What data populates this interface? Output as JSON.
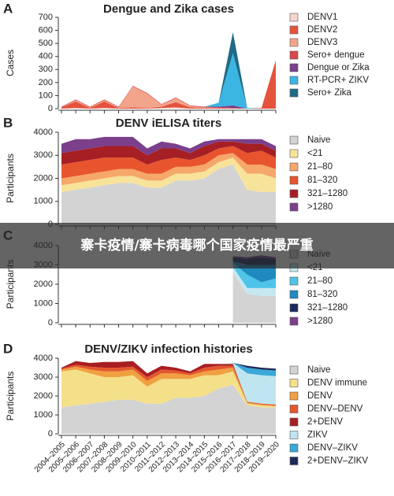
{
  "chart_data": [
    {
      "type": "area",
      "stacked": true,
      "panel_label": "A",
      "title": "Dengue and Zika cases",
      "ylabel": "Cases",
      "categories": [
        null,
        null,
        null,
        null,
        null,
        null,
        null,
        null,
        null,
        null,
        null,
        null,
        null,
        null,
        null,
        null
      ],
      "ylim": [
        0,
        700
      ],
      "yticks": [
        0,
        100,
        200,
        300,
        400,
        500,
        600,
        700
      ],
      "series": [
        {
          "name": "DENV1",
          "color": "#f6d5cc",
          "values": [
            0,
            5,
            0,
            5,
            0,
            0,
            0,
            5,
            10,
            0,
            0,
            0,
            0,
            0,
            0,
            0
          ]
        },
        {
          "name": "DENV2",
          "color": "#e5533d",
          "values": [
            10,
            50,
            5,
            50,
            5,
            10,
            5,
            10,
            40,
            10,
            5,
            5,
            0,
            0,
            5,
            370
          ]
        },
        {
          "name": "DENV3",
          "color": "#f2a58a",
          "values": [
            0,
            10,
            5,
            10,
            5,
            160,
            110,
            15,
            30,
            10,
            5,
            0,
            0,
            0,
            0,
            0
          ]
        },
        {
          "name": "Sero+ dengue",
          "color": "#d9474a",
          "values": [
            5,
            5,
            5,
            5,
            5,
            5,
            5,
            5,
            5,
            5,
            5,
            5,
            5,
            0,
            0,
            0
          ]
        },
        {
          "name": "Dengue or Zika",
          "color": "#7b3f8c",
          "values": [
            0,
            0,
            0,
            0,
            0,
            0,
            0,
            0,
            0,
            0,
            0,
            5,
            20,
            0,
            0,
            0
          ]
        },
        {
          "name": "RT-PCR+ ZIKV",
          "color": "#3bb6e3",
          "values": [
            0,
            0,
            0,
            0,
            0,
            0,
            0,
            0,
            0,
            0,
            0,
            30,
            400,
            5,
            0,
            0
          ]
        },
        {
          "name": "Sero+ Zika",
          "color": "#1f6a86",
          "values": [
            0,
            0,
            0,
            0,
            0,
            0,
            0,
            0,
            0,
            0,
            0,
            0,
            160,
            0,
            0,
            0
          ]
        }
      ]
    },
    {
      "type": "area",
      "stacked": true,
      "panel_label": "B",
      "title": "DENV iELISA titers",
      "ylabel": "Participants",
      "categories": [
        null,
        null,
        null,
        null,
        null,
        null,
        null,
        null,
        null,
        null,
        null,
        null,
        null,
        null,
        null,
        null
      ],
      "ylim": [
        0,
        4000
      ],
      "yticks": [
        0,
        1000,
        2000,
        3000,
        4000
      ],
      "series": [
        {
          "name": "Naive",
          "color": "#d3d3d3",
          "values": [
            1400,
            1500,
            1600,
            1700,
            1800,
            1800,
            1600,
            1600,
            1900,
            1900,
            2000,
            2400,
            2600,
            1500,
            1400,
            1400
          ]
        },
        {
          "name": "<21",
          "color": "#f7e39a",
          "values": [
            300,
            300,
            300,
            300,
            300,
            300,
            300,
            300,
            300,
            300,
            300,
            300,
            300,
            700,
            800,
            600
          ]
        },
        {
          "name": "21–80",
          "color": "#f6a76a",
          "values": [
            300,
            300,
            300,
            300,
            300,
            300,
            300,
            300,
            300,
            300,
            300,
            300,
            200,
            400,
            400,
            400
          ]
        },
        {
          "name": "81–320",
          "color": "#e8542e",
          "values": [
            600,
            600,
            600,
            600,
            500,
            500,
            400,
            600,
            400,
            300,
            400,
            300,
            300,
            500,
            600,
            500
          ]
        },
        {
          "name": "321–1280",
          "color": "#a51f24",
          "values": [
            500,
            500,
            500,
            500,
            500,
            500,
            400,
            500,
            400,
            300,
            400,
            300,
            200,
            400,
            300,
            300
          ]
        },
        {
          "name": ">1280",
          "color": "#7b3f8c",
          "values": [
            400,
            500,
            400,
            400,
            400,
            400,
            300,
            300,
            200,
            200,
            200,
            100,
            100,
            200,
            200,
            200
          ]
        }
      ]
    },
    {
      "type": "area",
      "stacked": true,
      "panel_label": "C",
      "ylabel": "Participants",
      "categories": [
        null,
        null,
        null,
        null,
        null,
        null,
        null,
        null,
        null,
        null,
        null,
        null,
        null,
        null,
        null,
        null
      ],
      "ylim": [
        0,
        4000
      ],
      "yticks": [
        0,
        1000,
        2000,
        3000,
        4000
      ],
      "series": [
        {
          "name": "Naive",
          "color": "#d3d3d3",
          "values": [
            null,
            null,
            null,
            null,
            null,
            null,
            null,
            null,
            null,
            null,
            null,
            null,
            2600,
            1500,
            1400,
            1400
          ]
        },
        {
          "name": "<21",
          "color": "#c6e8f0",
          "values": [
            null,
            null,
            null,
            null,
            null,
            null,
            null,
            null,
            null,
            null,
            null,
            null,
            300,
            300,
            400,
            400
          ]
        },
        {
          "name": "21–80",
          "color": "#4fc3e8",
          "values": [
            null,
            null,
            null,
            null,
            null,
            null,
            null,
            null,
            null,
            null,
            null,
            null,
            200,
            700,
            300,
            500
          ]
        },
        {
          "name": "81–320",
          "color": "#1f8ac0",
          "values": [
            null,
            null,
            null,
            null,
            null,
            null,
            null,
            null,
            null,
            null,
            null,
            null,
            100,
            500,
            900,
            700
          ]
        },
        {
          "name": "321–1280",
          "color": "#1c2a5e",
          "values": [
            null,
            null,
            null,
            null,
            null,
            null,
            null,
            null,
            null,
            null,
            null,
            null,
            200,
            300,
            400,
            300
          ]
        },
        {
          "name": ">1280",
          "color": "#7b3f8c",
          "values": [
            null,
            null,
            null,
            null,
            null,
            null,
            null,
            null,
            null,
            null,
            null,
            null,
            50,
            100,
            100,
            100
          ]
        }
      ]
    },
    {
      "type": "area",
      "stacked": true,
      "panel_label": "D",
      "title": "DENV/ZIKV infection histories",
      "ylabel": "Participants",
      "categories": [
        "2004–2005",
        "2005–2006",
        "2006–2007",
        "2007–2008",
        "2008–2009",
        "2009–2010",
        "2010–2011",
        "2011–2012",
        "2012–2013",
        "2013–2014",
        "2014–2015",
        "2015–2016",
        "2016–2017",
        "2017–2018",
        "2018–2019",
        "2019–2020"
      ],
      "ylim": [
        0,
        4000
      ],
      "yticks": [
        0,
        1000,
        2000,
        3000,
        4000
      ],
      "series": [
        {
          "name": "Naive",
          "color": "#d3d3d3",
          "values": [
            1400,
            1500,
            1600,
            1700,
            1800,
            1800,
            1600,
            1600,
            1900,
            1900,
            2000,
            2400,
            2600,
            1500,
            1400,
            1400
          ]
        },
        {
          "name": "DENV immune",
          "color": "#f5e08a",
          "values": [
            1900,
            1900,
            1600,
            1300,
            1200,
            1300,
            900,
            1300,
            1000,
            1000,
            1100,
            700,
            700,
            100,
            100,
            50
          ]
        },
        {
          "name": "DENV",
          "color": "#f0a040",
          "values": [
            100,
            150,
            200,
            300,
            300,
            300,
            300,
            300,
            300,
            200,
            200,
            300,
            200,
            50,
            50,
            50
          ]
        },
        {
          "name": "DENV–DENV",
          "color": "#e4572e",
          "values": [
            50,
            100,
            150,
            200,
            200,
            150,
            200,
            200,
            150,
            100,
            200,
            200,
            100,
            50,
            50,
            50
          ]
        },
        {
          "name": "2+DENV",
          "color": "#a81e22",
          "values": [
            50,
            200,
            200,
            300,
            300,
            300,
            200,
            200,
            150,
            100,
            200,
            100,
            100,
            0,
            0,
            0
          ]
        },
        {
          "name": "ZIKV",
          "color": "#bfe6f0",
          "values": [
            0,
            0,
            0,
            0,
            0,
            0,
            0,
            0,
            0,
            0,
            0,
            0,
            50,
            1500,
            1500,
            1500
          ]
        },
        {
          "name": "DENV–ZIKV",
          "color": "#3aa8d8",
          "values": [
            0,
            0,
            0,
            0,
            0,
            0,
            0,
            0,
            0,
            0,
            0,
            0,
            0,
            300,
            300,
            300
          ]
        },
        {
          "name": "2+DENV–ZIKV",
          "color": "#1f2a5c",
          "values": [
            0,
            0,
            0,
            0,
            0,
            0,
            0,
            0,
            0,
            0,
            0,
            0,
            0,
            100,
            100,
            100
          ]
        }
      ]
    }
  ],
  "banner": "寨卡疫情/寨卡病毒哪个国家疫情最严重"
}
